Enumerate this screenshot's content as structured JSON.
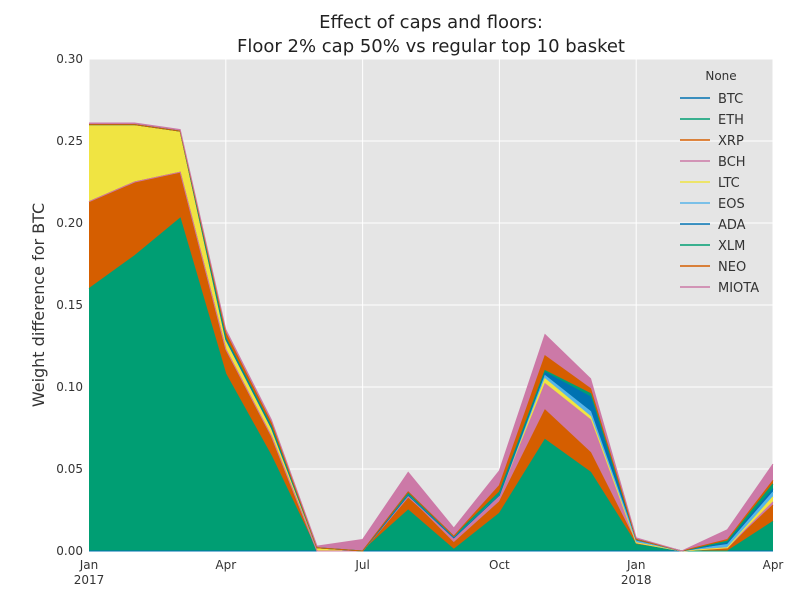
{
  "chart_data": {
    "type": "area",
    "title_lines": [
      "Effect of caps and floors:",
      "Floor 2% cap 50% vs regular top 10 basket"
    ],
    "ylabel": "Weight difference for BTC",
    "xlabel": "",
    "ylim": [
      0,
      0.3
    ],
    "yticks": [
      "0.00",
      "0.05",
      "0.10",
      "0.15",
      "0.20",
      "0.25",
      "0.30"
    ],
    "x": [
      "2017-01",
      "2017-02",
      "2017-03",
      "2017-04",
      "2017-05",
      "2017-06",
      "2017-07",
      "2017-08",
      "2017-09",
      "2017-10",
      "2017-11",
      "2017-12",
      "2018-01",
      "2018-02",
      "2018-03",
      "2018-04"
    ],
    "xticks": [
      {
        "major": "Jan",
        "minor": "2017"
      },
      {
        "major": "Apr",
        "minor": ""
      },
      {
        "major": "Jul",
        "minor": ""
      },
      {
        "major": "Oct",
        "minor": ""
      },
      {
        "major": "Jan",
        "minor": "2018"
      },
      {
        "major": "Apr",
        "minor": ""
      }
    ],
    "grid": true,
    "legend": {
      "title": "None",
      "placement": "top-right"
    },
    "series": [
      {
        "name": "BTC",
        "color": "#0072b2",
        "values": [
          0,
          0,
          0,
          0,
          0,
          0,
          0,
          0,
          0,
          0,
          0,
          0,
          0,
          0,
          0,
          0
        ]
      },
      {
        "name": "ETH",
        "color": "#009e73",
        "values": [
          0.16,
          0.18,
          0.203,
          0.108,
          0.058,
          0.0,
          0.0,
          0.025,
          0.001,
          0.023,
          0.068,
          0.048,
          0.004,
          0.0,
          0.0,
          0.018
        ]
      },
      {
        "name": "XRP",
        "color": "#d55e00",
        "values": [
          0.053,
          0.045,
          0.028,
          0.015,
          0.012,
          0.0,
          0.0,
          0.008,
          0.004,
          0.007,
          0.018,
          0.012,
          0.001,
          0.0,
          0.002,
          0.01
        ]
      },
      {
        "name": "BCH",
        "color": "#cc79a7",
        "values": [
          0,
          0,
          0,
          0,
          0,
          0,
          0.0,
          0.0,
          0.003,
          0.003,
          0.016,
          0.02,
          0.0,
          0.0,
          0.0,
          0.002
        ]
      },
      {
        "name": "LTC",
        "color": "#f0e442",
        "values": [
          0.047,
          0.035,
          0.025,
          0.006,
          0.005,
          0.002,
          0.0,
          0.001,
          0.0,
          0.001,
          0.003,
          0.002,
          0.0,
          0.0,
          0.0,
          0.003
        ]
      },
      {
        "name": "EOS",
        "color": "#56b4e9",
        "values": [
          0,
          0,
          0,
          0,
          0,
          0,
          0.0,
          0.0,
          0.0,
          0.0,
          0.002,
          0.003,
          0.001,
          0.0,
          0.002,
          0.003
        ]
      },
      {
        "name": "ADA",
        "color": "#0072b2",
        "values": [
          0,
          0,
          0,
          0,
          0,
          0,
          0,
          0,
          0,
          0,
          0.002,
          0.009,
          0.001,
          0.0,
          0.001,
          0.002
        ]
      },
      {
        "name": "XLM",
        "color": "#009e73",
        "values": [
          0.0,
          0.0,
          0.0,
          0.001,
          0.001,
          0.0,
          0.0,
          0.002,
          0.001,
          0.002,
          0.001,
          0.002,
          0.0,
          0.0,
          0.001,
          0.003
        ]
      },
      {
        "name": "NEO",
        "color": "#d55e00",
        "values": [
          0,
          0,
          0,
          0.003,
          0.002,
          0.0,
          0.0,
          0.0,
          0.0,
          0.004,
          0.009,
          0.003,
          0.0,
          0.0,
          0.001,
          0.002
        ]
      },
      {
        "name": "MIOTA",
        "color": "#cc79a7",
        "values": [
          0.001,
          0.001,
          0.001,
          0.002,
          0.002,
          0.001,
          0.007,
          0.012,
          0.005,
          0.009,
          0.013,
          0.006,
          0.001,
          0.0,
          0.006,
          0.01
        ]
      }
    ]
  }
}
